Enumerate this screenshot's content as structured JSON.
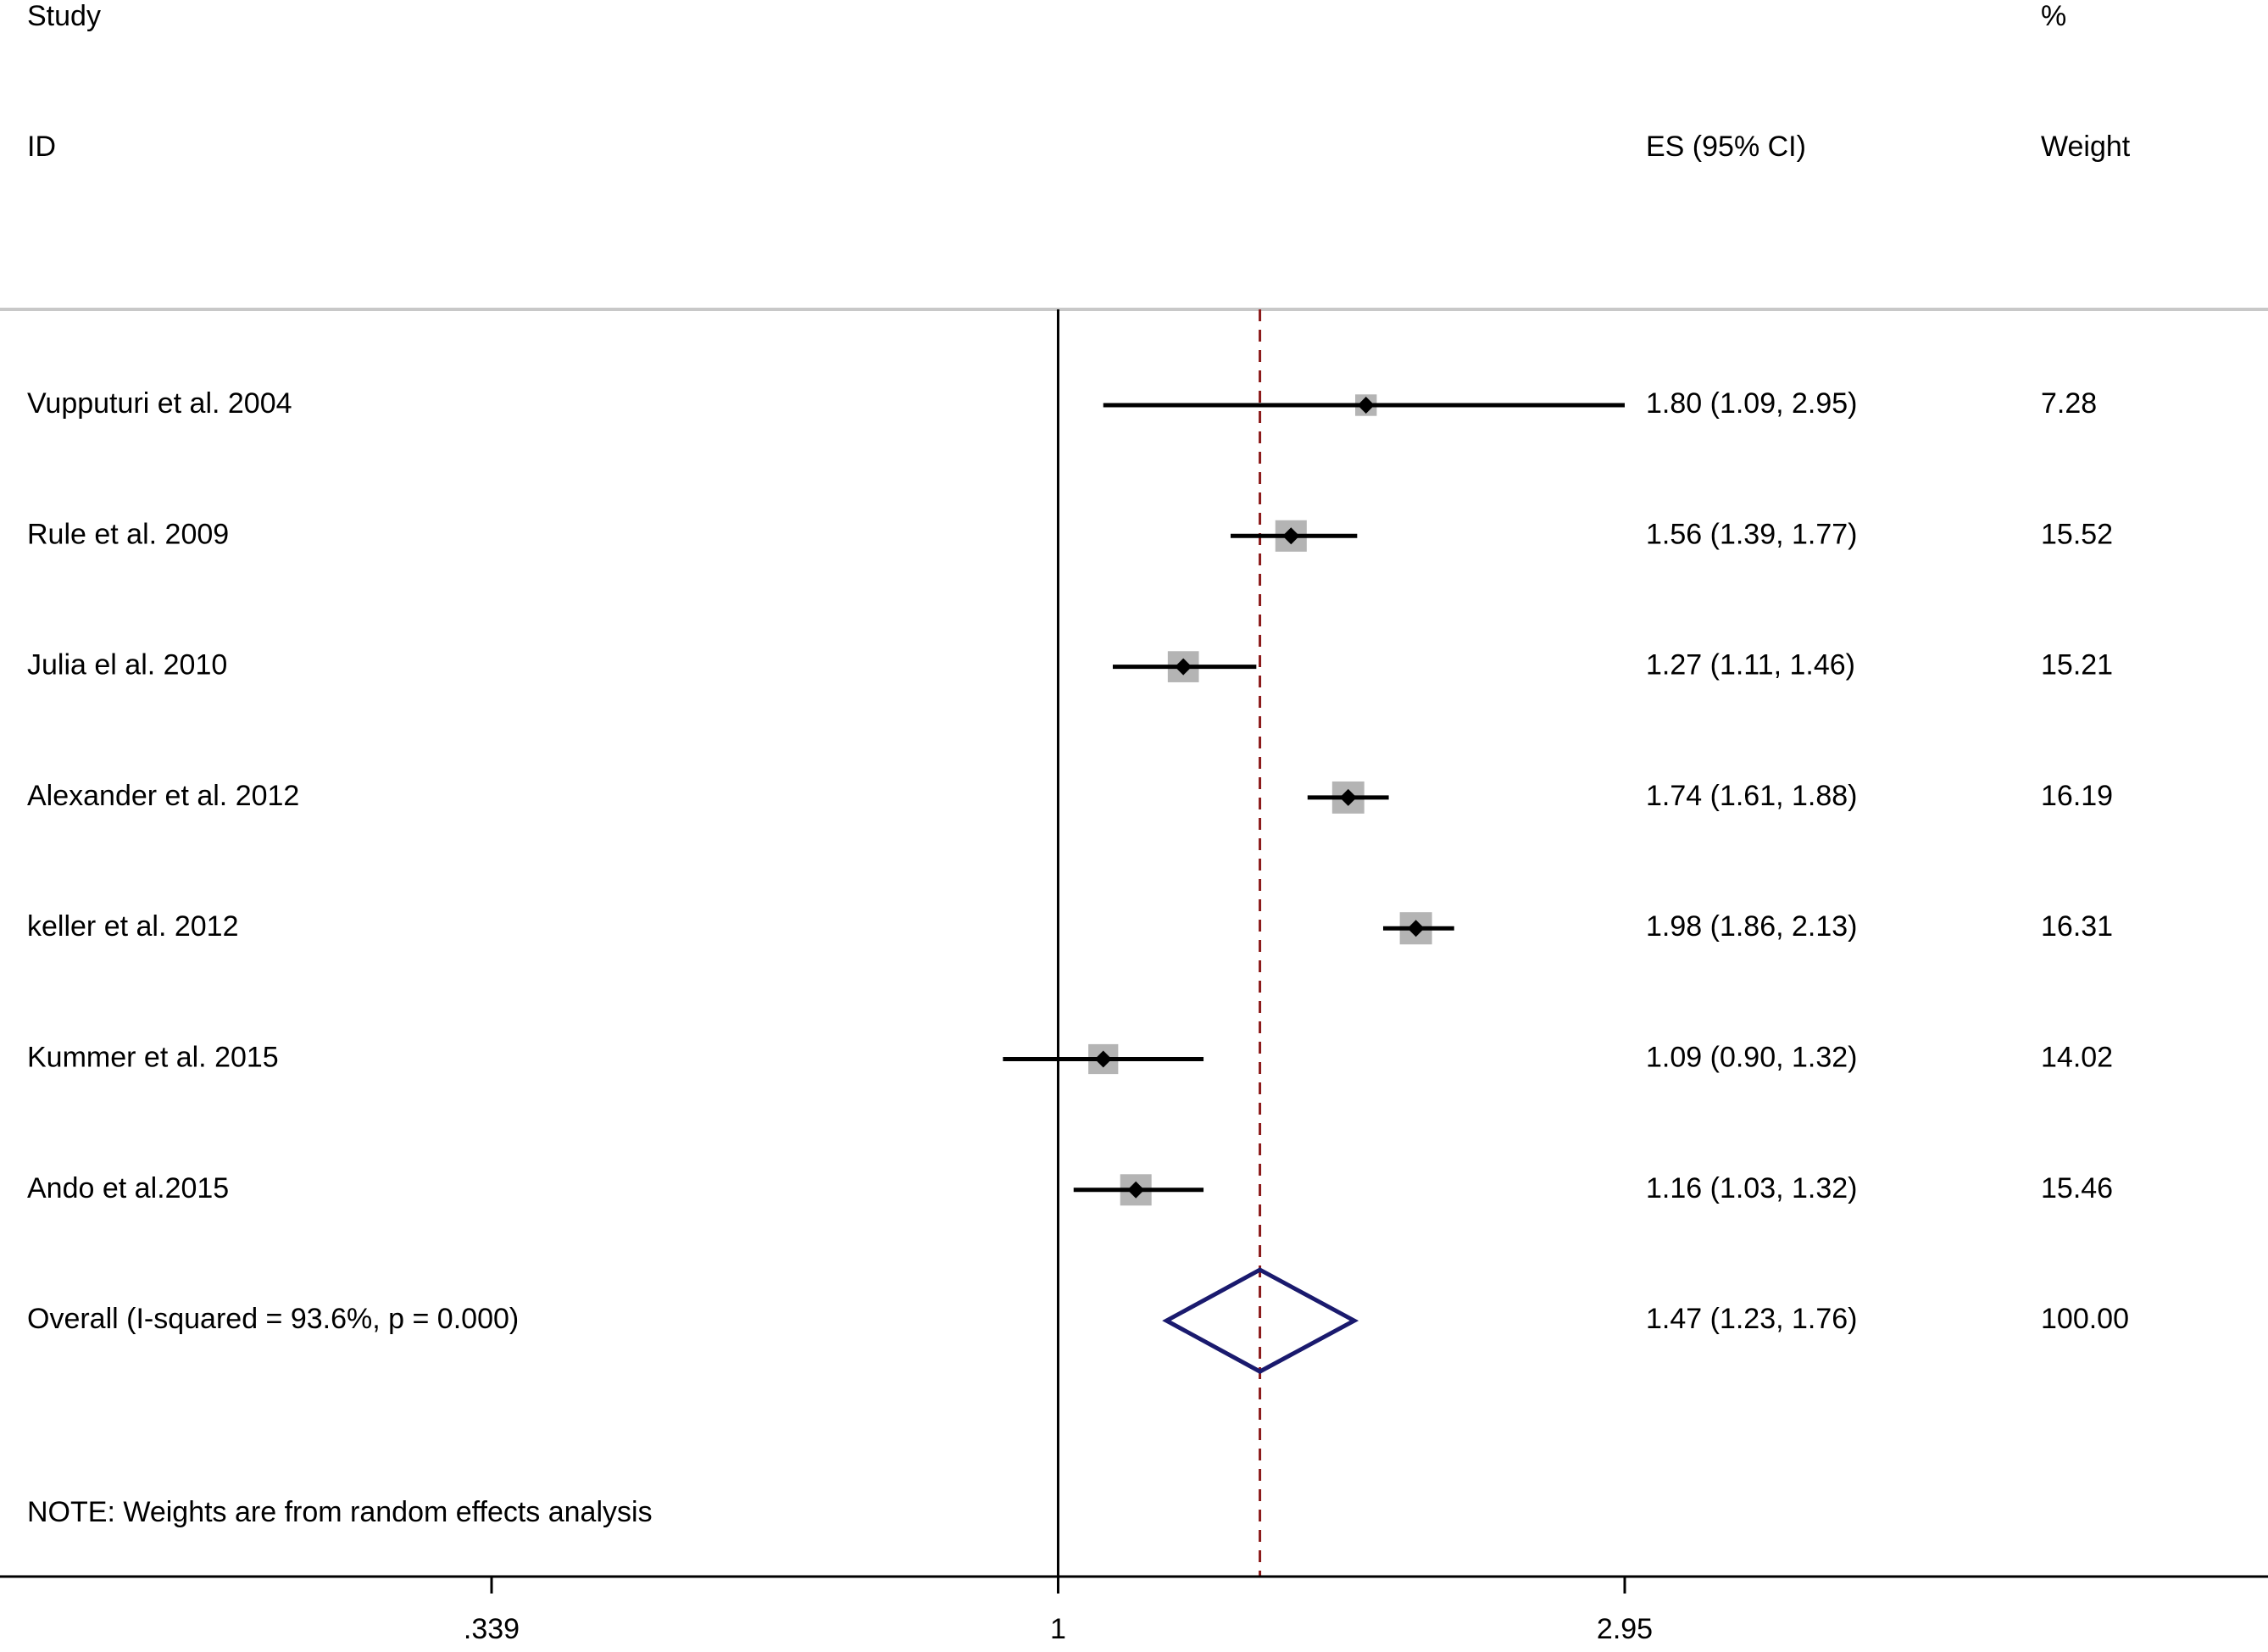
{
  "header": {
    "study": "Study",
    "id": "ID",
    "es": "ES (95% CI)",
    "pct": "%",
    "weight": "Weight"
  },
  "note": "NOTE: Weights are from random effects analysis",
  "chart_data": {
    "type": "forest",
    "scale": "log",
    "null_value": 1,
    "xlim": [
      0.339,
      2.95
    ],
    "xticks": [
      {
        "value": 0.339,
        "label": ".339"
      },
      {
        "value": 1,
        "label": "1"
      },
      {
        "value": 2.95,
        "label": "2.95"
      }
    ],
    "pooled_line": 1.47,
    "colors": {
      "ci_line": "#000000",
      "box": "#b4b4b4",
      "diamond": "#1a1a6e",
      "pooled_line": "#8b1a1a",
      "rule": "#c8c8c8"
    },
    "studies": [
      {
        "id": "Vupputuri et al. 2004",
        "es": 1.8,
        "lo": 1.09,
        "hi": 2.95,
        "es_text": "1.80 (1.09, 2.95)",
        "weight": 7.28,
        "weight_text": "7.28"
      },
      {
        "id": "Rule et al. 2009",
        "es": 1.56,
        "lo": 1.39,
        "hi": 1.77,
        "es_text": "1.56 (1.39, 1.77)",
        "weight": 15.52,
        "weight_text": "15.52"
      },
      {
        "id": "Julia el al. 2010",
        "es": 1.27,
        "lo": 1.11,
        "hi": 1.46,
        "es_text": "1.27 (1.11, 1.46)",
        "weight": 15.21,
        "weight_text": "15.21"
      },
      {
        "id": "Alexander et al. 2012",
        "es": 1.74,
        "lo": 1.61,
        "hi": 1.88,
        "es_text": "1.74 (1.61, 1.88)",
        "weight": 16.19,
        "weight_text": "16.19"
      },
      {
        "id": "keller et al. 2012",
        "es": 1.98,
        "lo": 1.86,
        "hi": 2.13,
        "es_text": "1.98 (1.86, 2.13)",
        "weight": 16.31,
        "weight_text": "16.31"
      },
      {
        "id": "Kummer et al. 2015",
        "es": 1.09,
        "lo": 0.9,
        "hi": 1.32,
        "es_text": "1.09 (0.90, 1.32)",
        "weight": 14.02,
        "weight_text": "14.02"
      },
      {
        "id": "Ando et al.2015",
        "es": 1.16,
        "lo": 1.03,
        "hi": 1.32,
        "es_text": "1.16 (1.03, 1.32)",
        "weight": 15.46,
        "weight_text": "15.46"
      }
    ],
    "overall": {
      "id": "Overall  (I-squared = 93.6%, p = 0.000)",
      "es": 1.47,
      "lo": 1.23,
      "hi": 1.76,
      "es_text": "1.47 (1.23, 1.76)",
      "weight": 100.0,
      "weight_text": "100.00"
    }
  }
}
